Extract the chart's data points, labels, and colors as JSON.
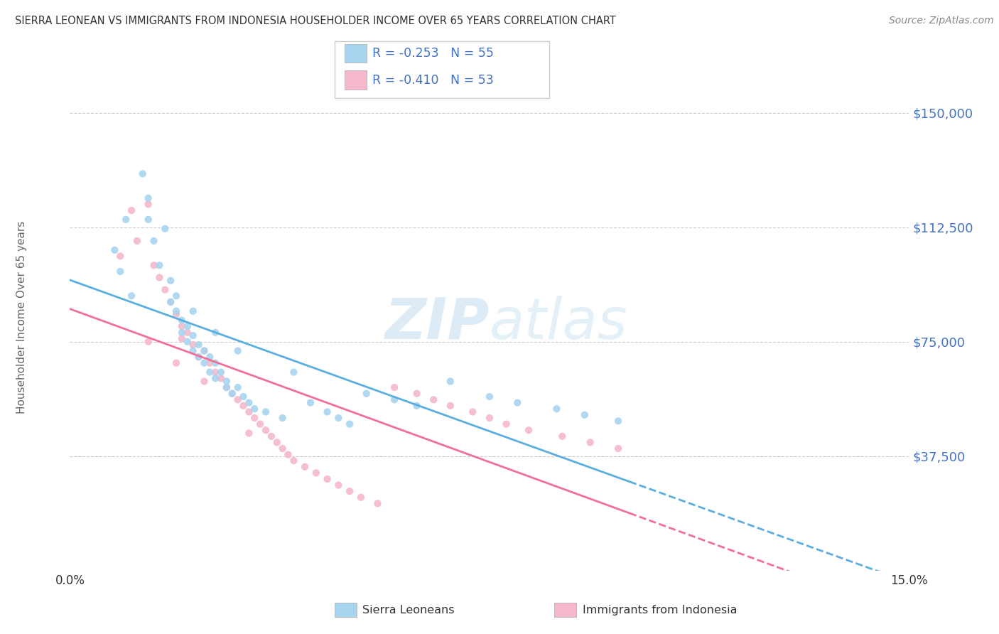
{
  "title": "SIERRA LEONEAN VS IMMIGRANTS FROM INDONESIA HOUSEHOLDER INCOME OVER 65 YEARS CORRELATION CHART",
  "source": "Source: ZipAtlas.com",
  "ylabel": "Householder Income Over 65 years",
  "watermark_zip": "ZIP",
  "watermark_atlas": "atlas",
  "legend_label1": "Sierra Leoneans",
  "legend_label2": "Immigrants from Indonesia",
  "r1": "-0.253",
  "n1": "55",
  "r2": "-0.410",
  "n2": "53",
  "yticks": [
    0,
    37500,
    75000,
    112500,
    150000
  ],
  "ytick_labels": [
    "",
    "$37,500",
    "$75,000",
    "$112,500",
    "$150,000"
  ],
  "xlim": [
    0.0,
    0.15
  ],
  "ylim": [
    0,
    162000
  ],
  "color1": "#a8d4f0",
  "color2": "#f5b8ca",
  "line_color1": "#5baee0",
  "line_color2": "#f07098",
  "grid_color": "#cccccc",
  "text_color": "#4472c4",
  "title_color": "#333333",
  "source_color": "#888888",
  "sl_x": [
    0.008,
    0.009,
    0.01,
    0.011,
    0.013,
    0.014,
    0.015,
    0.016,
    0.017,
    0.018,
    0.018,
    0.019,
    0.02,
    0.02,
    0.021,
    0.021,
    0.022,
    0.022,
    0.023,
    0.023,
    0.024,
    0.024,
    0.025,
    0.025,
    0.026,
    0.026,
    0.027,
    0.028,
    0.028,
    0.029,
    0.03,
    0.031,
    0.032,
    0.033,
    0.035,
    0.038,
    0.04,
    0.043,
    0.046,
    0.048,
    0.05,
    0.053,
    0.058,
    0.062,
    0.068,
    0.075,
    0.08,
    0.087,
    0.092,
    0.098,
    0.014,
    0.019,
    0.022,
    0.026,
    0.03
  ],
  "sl_y": [
    105000,
    98000,
    115000,
    90000,
    130000,
    122000,
    108000,
    100000,
    112000,
    95000,
    88000,
    85000,
    82000,
    78000,
    80000,
    75000,
    77000,
    72000,
    74000,
    70000,
    72000,
    68000,
    70000,
    65000,
    68000,
    63000,
    65000,
    62000,
    60000,
    58000,
    60000,
    57000,
    55000,
    53000,
    52000,
    50000,
    65000,
    55000,
    52000,
    50000,
    48000,
    58000,
    56000,
    54000,
    62000,
    57000,
    55000,
    53000,
    51000,
    49000,
    115000,
    90000,
    85000,
    78000,
    72000
  ],
  "indo_x": [
    0.009,
    0.011,
    0.012,
    0.014,
    0.015,
    0.016,
    0.017,
    0.018,
    0.019,
    0.02,
    0.02,
    0.021,
    0.022,
    0.023,
    0.024,
    0.025,
    0.026,
    0.027,
    0.028,
    0.029,
    0.03,
    0.031,
    0.032,
    0.033,
    0.034,
    0.035,
    0.036,
    0.037,
    0.038,
    0.039,
    0.04,
    0.042,
    0.044,
    0.046,
    0.048,
    0.05,
    0.052,
    0.055,
    0.058,
    0.062,
    0.065,
    0.068,
    0.072,
    0.075,
    0.078,
    0.082,
    0.088,
    0.093,
    0.098,
    0.014,
    0.019,
    0.024,
    0.032
  ],
  "indo_y": [
    103000,
    118000,
    108000,
    120000,
    100000,
    96000,
    92000,
    88000,
    84000,
    80000,
    76000,
    78000,
    74000,
    70000,
    72000,
    68000,
    65000,
    63000,
    60000,
    58000,
    56000,
    54000,
    52000,
    50000,
    48000,
    46000,
    44000,
    42000,
    40000,
    38000,
    36000,
    34000,
    32000,
    30000,
    28000,
    26000,
    24000,
    22000,
    60000,
    58000,
    56000,
    54000,
    52000,
    50000,
    48000,
    46000,
    44000,
    42000,
    40000,
    75000,
    68000,
    62000,
    45000
  ]
}
